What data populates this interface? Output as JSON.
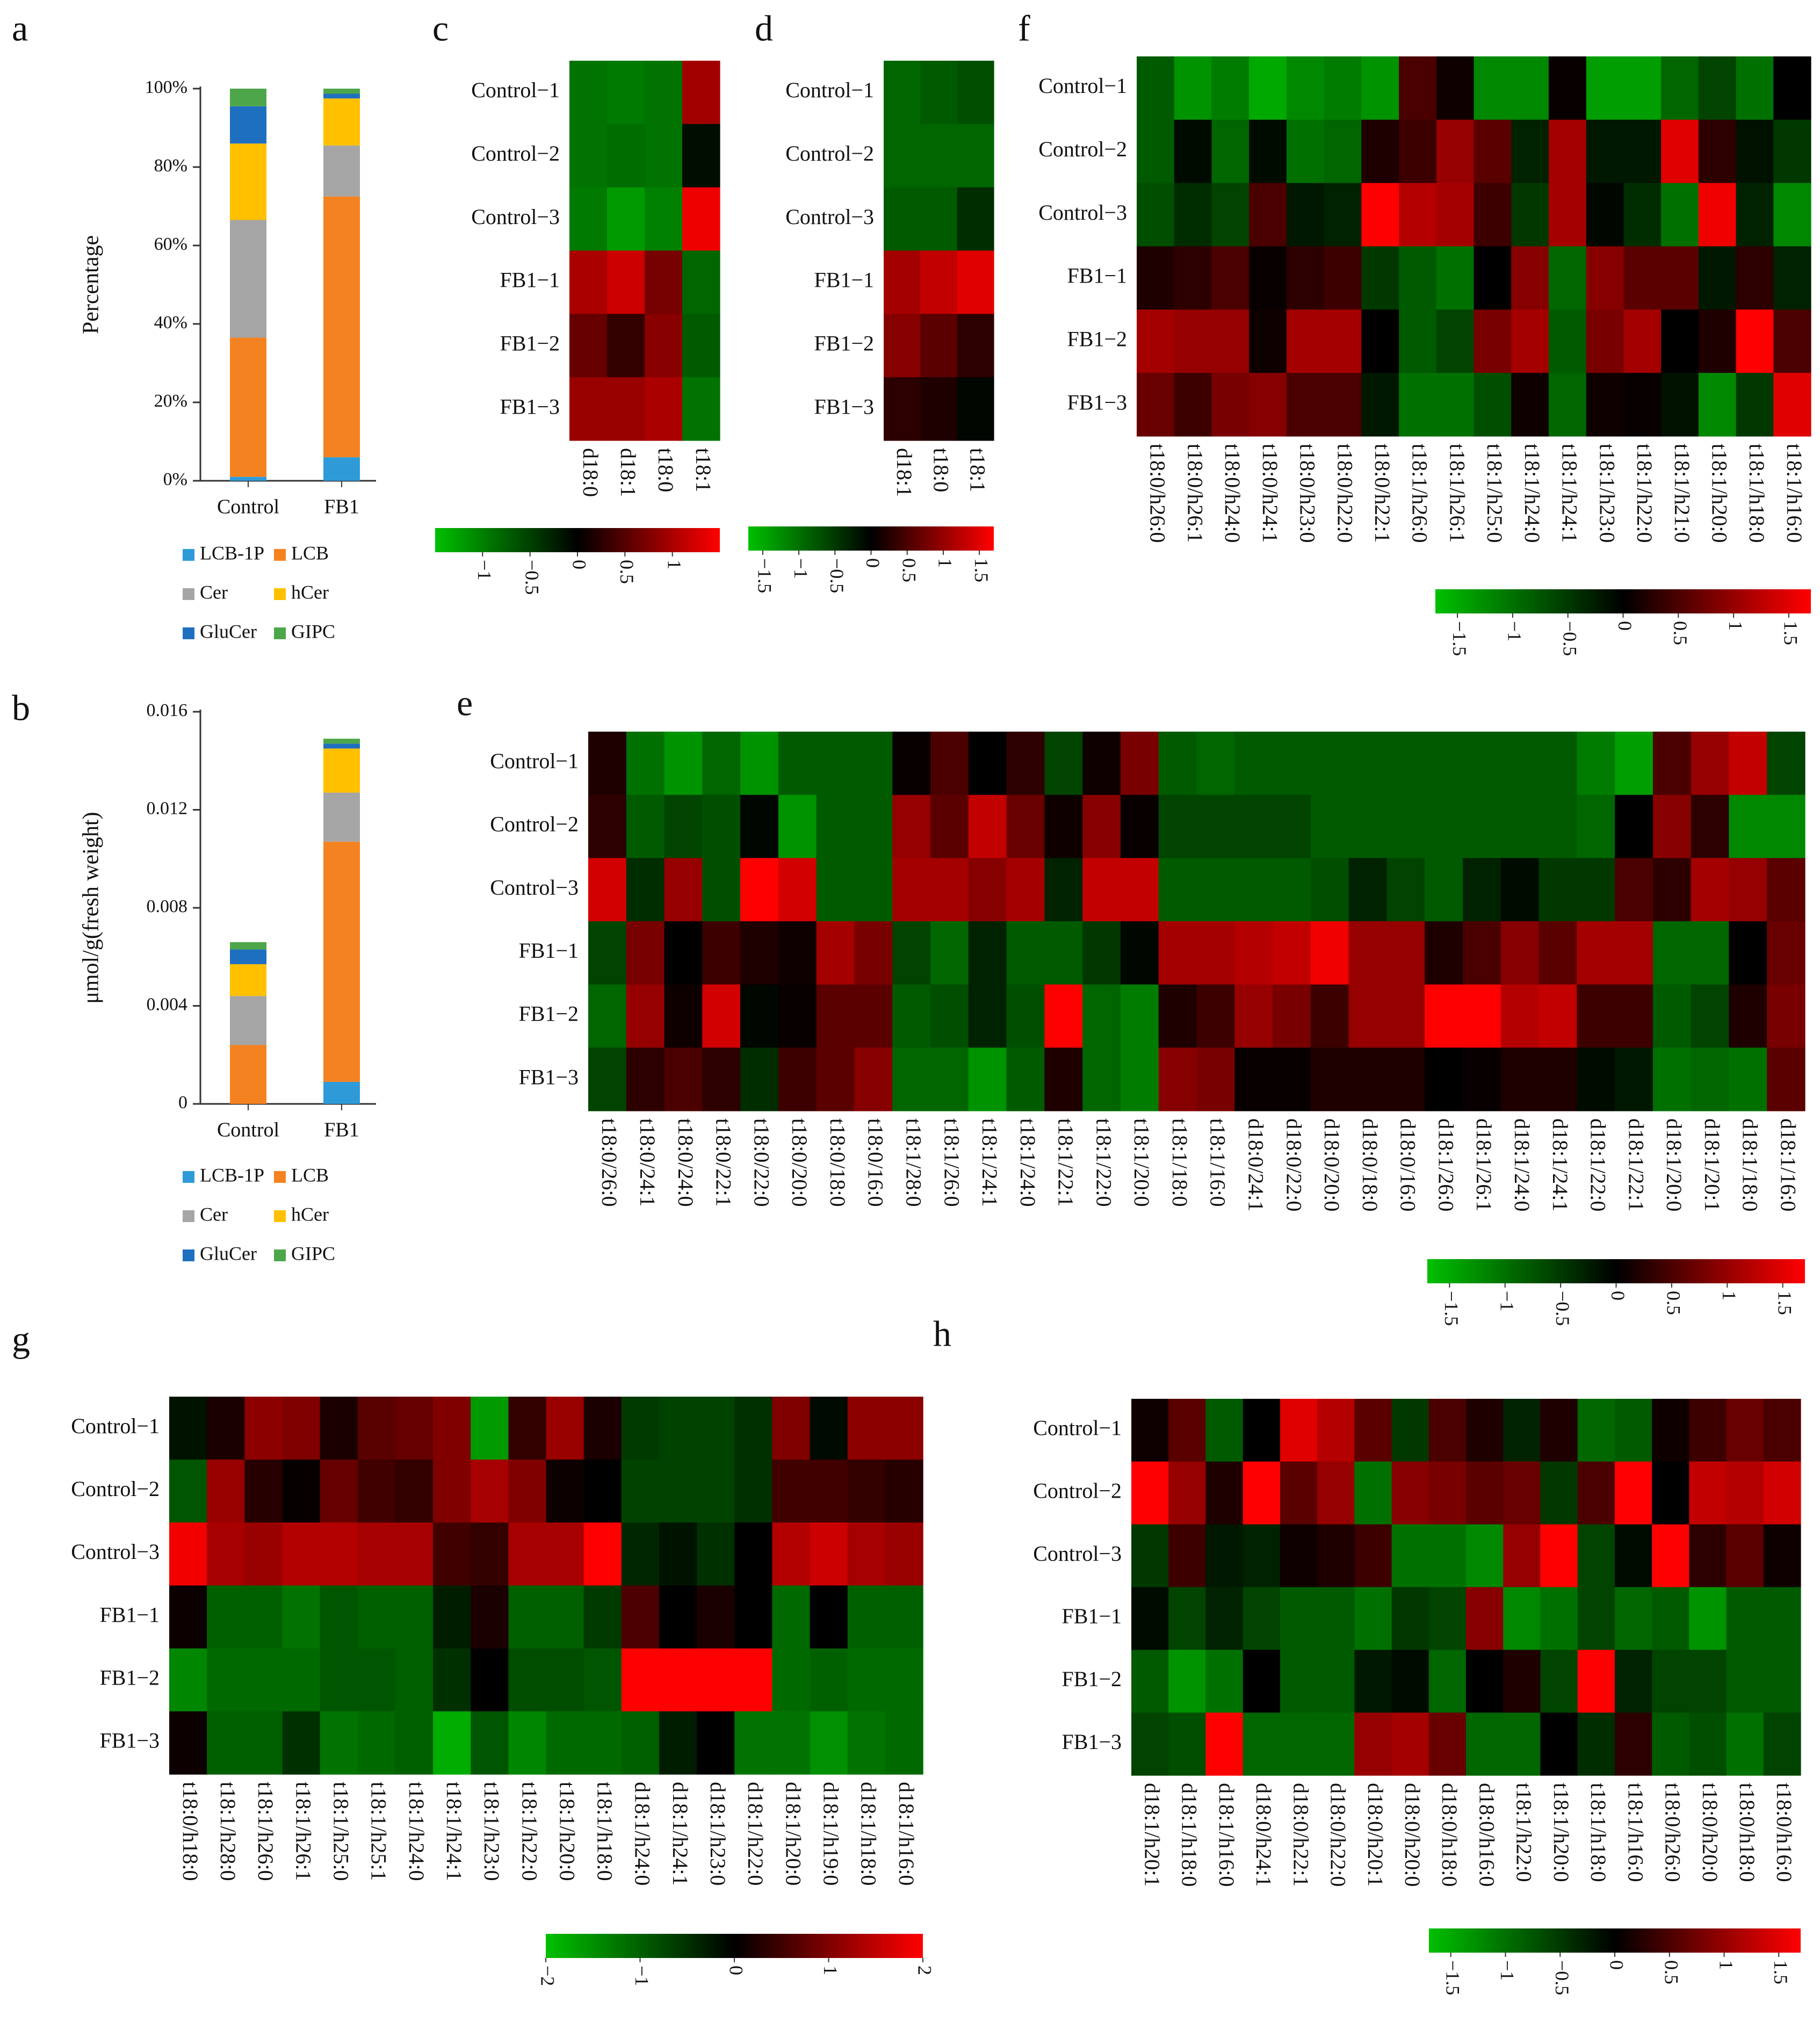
{
  "figure": "Sphingolipid composition and species heatmaps, Control vs FB1",
  "colors": {
    "LCB-1P": "#2e9bd8",
    "LCB": "#f58220",
    "Cer": "#a5a5a5",
    "hCer": "#ffc000",
    "GluCer": "#1f6fc1",
    "GIPC": "#4ea64a",
    "heat_low": "#00c000",
    "heat_mid": "#000000",
    "heat_high": "#ff0000"
  },
  "chart_data": [
    {
      "id": "a",
      "panel_label": "a",
      "type": "bar",
      "stacked": true,
      "categories": [
        "Control",
        "FB1"
      ],
      "series": [
        {
          "name": "LCB-1P",
          "values": [
            0.01,
            0.06
          ]
        },
        {
          "name": "LCB",
          "values": [
            0.355,
            0.665
          ]
        },
        {
          "name": "Cer",
          "values": [
            0.3,
            0.13
          ]
        },
        {
          "name": "hCer",
          "values": [
            0.195,
            0.12
          ]
        },
        {
          "name": "GluCer",
          "values": [
            0.095,
            0.012
          ]
        },
        {
          "name": "GIPC",
          "values": [
            0.045,
            0.013
          ]
        }
      ],
      "title": "",
      "xlabel": "",
      "ylabel": "Percentage",
      "ylim": [
        0,
        1
      ],
      "yticks": [
        0,
        0.2,
        0.4,
        0.6,
        0.8,
        1.0
      ],
      "ytick_labels": [
        "0%",
        "20%",
        "40%",
        "60%",
        "80%",
        "100%"
      ],
      "legend": [
        "LCB-1P",
        "LCB",
        "Cer",
        "hCer",
        "GluCer",
        "GIPC"
      ],
      "legend_position": "bottom"
    },
    {
      "id": "b",
      "panel_label": "b",
      "type": "bar",
      "stacked": true,
      "categories": [
        "Control",
        "FB1"
      ],
      "series": [
        {
          "name": "LCB-1P",
          "values": [
            0.0,
            0.0009
          ]
        },
        {
          "name": "LCB",
          "values": [
            0.0024,
            0.0098
          ]
        },
        {
          "name": "Cer",
          "values": [
            0.002,
            0.002
          ]
        },
        {
          "name": "hCer",
          "values": [
            0.0013,
            0.0018
          ]
        },
        {
          "name": "GluCer",
          "values": [
            0.0006,
            0.0002
          ]
        },
        {
          "name": "GIPC",
          "values": [
            0.0003,
            0.0002
          ]
        }
      ],
      "title": "",
      "xlabel": "",
      "ylabel": "μmol/g(fresh weight)",
      "ylim": [
        0,
        0.016
      ],
      "yticks": [
        0,
        0.004,
        0.008,
        0.012,
        0.016
      ],
      "ytick_labels": [
        "0",
        "0.004",
        "0.008",
        "0.012",
        "0.016"
      ],
      "legend": [
        "LCB-1P",
        "LCB",
        "Cer",
        "hCer",
        "GluCer",
        "GIPC"
      ],
      "legend_position": "bottom"
    },
    {
      "id": "c",
      "panel_label": "c",
      "type": "heatmap",
      "rows": [
        "Control−1",
        "Control−2",
        "Control−3",
        "FB1−1",
        "FB1−2",
        "FB1−3"
      ],
      "columns": [
        "d18:0",
        "d18:1",
        "t18:0",
        "t18:1"
      ],
      "values": [
        [
          -0.9,
          -0.95,
          -0.9,
          0.95
        ],
        [
          -0.9,
          -0.85,
          -0.9,
          -0.1
        ],
        [
          -0.95,
          -1.2,
          -1.0,
          1.4
        ],
        [
          1.0,
          1.2,
          0.7,
          -0.8
        ],
        [
          0.6,
          0.3,
          0.8,
          -0.7
        ],
        [
          0.9,
          0.9,
          1.0,
          -0.9
        ]
      ],
      "scale_range": [
        -1.5,
        1.5
      ],
      "scale_ticks": [
        "−1",
        "−0.5",
        "0",
        "0.5",
        "1"
      ],
      "scale_tick_values": [
        -1,
        -0.5,
        0,
        0.5,
        1
      ]
    },
    {
      "id": "d",
      "panel_label": "d",
      "type": "heatmap",
      "rows": [
        "Control−1",
        "Control−2",
        "Control−3",
        "FB1−1",
        "FB1−2",
        "FB1−3"
      ],
      "columns": [
        "d18:1",
        "t18:0",
        "t18:1"
      ],
      "values": [
        [
          -0.9,
          -0.8,
          -0.7
        ],
        [
          -0.9,
          -0.9,
          -0.9
        ],
        [
          -0.8,
          -0.8,
          -0.4
        ],
        [
          1.1,
          1.3,
          1.5
        ],
        [
          0.9,
          0.6,
          0.3
        ],
        [
          0.3,
          0.2,
          -0.05
        ]
      ],
      "scale_range": [
        -1.7,
        1.7
      ],
      "scale_ticks": [
        "−1.5",
        "−1",
        "−0.5",
        "0",
        "0.5",
        "1",
        "1.5"
      ],
      "scale_tick_values": [
        -1.5,
        -1,
        -0.5,
        0,
        0.5,
        1,
        1.5
      ]
    },
    {
      "id": "e",
      "panel_label": "e",
      "type": "heatmap",
      "rows": [
        "Control−1",
        "Control−2",
        "Control−3",
        "FB1−1",
        "FB1−2",
        "FB1−3"
      ],
      "columns": [
        "t18:0/26:0",
        "t18:0/24:1",
        "t18:0/24:0",
        "t18:0/22:1",
        "t18:0/22:0",
        "t18:0/20:0",
        "t18:0/18:0",
        "t18:0/16:0",
        "t18:1/28:0",
        "t18:1/26:0",
        "t18:1/24:1",
        "t18:1/24:0",
        "t18:1/22:1",
        "t18:1/22:0",
        "t18:1/20:0",
        "t18:1/18:0",
        "t18:1/16:0",
        "d18:0/24:1",
        "d18:0/22:0",
        "d18:0/20:0",
        "d18:0/18:0",
        "d18:0/16:0",
        "d18:1/26:0",
        "d18:1/26:1",
        "d18:1/24:0",
        "d18:1/24:1",
        "d18:1/22:0",
        "d18:1/22:1",
        "d18:1/20:0",
        "d18:1/20:1",
        "d18:1/18:0",
        "d18:1/16:0"
      ],
      "values": [
        [
          0.2,
          -1.0,
          -1.3,
          -0.9,
          -1.3,
          -0.8,
          -0.8,
          -0.8,
          0.05,
          0.5,
          0.0,
          0.3,
          -0.6,
          0.1,
          0.8,
          -0.8,
          -0.9,
          -0.8,
          -0.8,
          -0.8,
          -0.8,
          -0.8,
          -0.8,
          -0.8,
          -0.8,
          -0.8,
          -1.1,
          -1.4,
          0.5,
          1.0,
          1.3,
          -0.6
        ],
        [
          0.3,
          -0.8,
          -0.6,
          -0.7,
          -0.05,
          -1.3,
          -0.8,
          -0.8,
          1.0,
          0.6,
          1.3,
          0.7,
          0.1,
          0.9,
          0.05,
          -0.6,
          -0.6,
          -0.6,
          -0.6,
          -0.8,
          -0.8,
          -0.8,
          -0.8,
          -0.8,
          -0.8,
          -0.8,
          -0.9,
          0.0,
          0.9,
          0.3,
          -1.2,
          -1.2
        ],
        [
          1.4,
          -0.4,
          1.0,
          -0.7,
          1.7,
          1.4,
          -0.8,
          -0.8,
          1.1,
          1.1,
          0.9,
          1.1,
          -0.3,
          1.3,
          1.3,
          -0.8,
          -0.8,
          -0.8,
          -0.8,
          -0.7,
          -0.3,
          -0.6,
          -0.8,
          -0.3,
          -0.1,
          -0.5,
          -0.5,
          0.5,
          0.3,
          1.1,
          1.0,
          0.6
        ],
        [
          -0.6,
          0.8,
          0.0,
          0.4,
          0.2,
          0.1,
          1.1,
          0.8,
          -0.6,
          -0.9,
          -0.3,
          -0.8,
          -0.8,
          -0.5,
          -0.05,
          1.1,
          1.1,
          1.2,
          1.3,
          1.6,
          1.0,
          1.0,
          0.2,
          0.5,
          0.9,
          0.6,
          1.1,
          1.1,
          -0.9,
          -0.9,
          0.0,
          0.7
        ],
        [
          -0.9,
          1.0,
          0.1,
          1.4,
          -0.05,
          0.05,
          0.6,
          0.6,
          -0.8,
          -0.7,
          -0.3,
          -0.7,
          1.7,
          -0.9,
          -1.1,
          0.2,
          0.4,
          1.0,
          0.8,
          0.4,
          1.0,
          1.0,
          1.7,
          1.7,
          1.2,
          1.3,
          0.4,
          0.4,
          -0.8,
          -0.6,
          0.2,
          0.8
        ],
        [
          -0.6,
          0.3,
          0.5,
          0.3,
          -0.4,
          0.4,
          0.6,
          0.9,
          -0.9,
          -0.9,
          -1.3,
          -0.8,
          0.2,
          -0.9,
          -1.1,
          0.9,
          0.8,
          0.05,
          0.05,
          0.2,
          0.2,
          0.2,
          0.0,
          0.05,
          0.2,
          0.2,
          -0.1,
          -0.2,
          -1.0,
          -0.9,
          -1.0,
          0.6
        ]
      ],
      "scale_range": [
        -1.7,
        1.7
      ],
      "scale_ticks": [
        "−1.5",
        "−1",
        "−0.5",
        "0",
        "0.5",
        "1",
        "1.5"
      ],
      "scale_tick_values": [
        -1.5,
        -1,
        -0.5,
        0,
        0.5,
        1,
        1.5
      ]
    },
    {
      "id": "f",
      "panel_label": "f",
      "type": "heatmap",
      "rows": [
        "Control−1",
        "Control−2",
        "Control−3",
        "FB1−1",
        "FB1−2",
        "FB1−3"
      ],
      "columns": [
        "t18:0/h26:0",
        "t18:0/h26:1",
        "t18:0/h24:0",
        "t18:0/h24:1",
        "t18:0/h23:0",
        "t18:0/h22:0",
        "t18:0/h22:1",
        "t18:1/h26:0",
        "t18:1/h26:1",
        "t18:1/h25:0",
        "t18:1/h24:0",
        "t18:1/h24:1",
        "t18:1/h23:0",
        "t18:1/h22:0",
        "t18:1/h21:0",
        "t18:1/h20:0",
        "t18:1/h18:0",
        "t18:1/h16:0"
      ],
      "values": [
        [
          -0.8,
          -1.3,
          -1.1,
          -1.5,
          -1.2,
          -1.1,
          -1.3,
          0.5,
          0.1,
          -1.2,
          -1.2,
          0.05,
          -1.4,
          -1.4,
          -0.9,
          -0.6,
          -1.0,
          0.0
        ],
        [
          -0.8,
          -0.1,
          -0.9,
          -0.1,
          -1.0,
          -0.9,
          0.2,
          0.4,
          1.0,
          0.6,
          -0.3,
          1.1,
          -0.2,
          -0.2,
          1.5,
          0.3,
          -0.15,
          -0.5
        ],
        [
          -0.7,
          -0.4,
          -0.6,
          0.5,
          -0.2,
          -0.3,
          1.7,
          1.2,
          1.1,
          0.4,
          -0.5,
          1.1,
          -0.05,
          -0.4,
          -1.0,
          1.6,
          -0.3,
          -1.2
        ],
        [
          0.2,
          0.3,
          0.5,
          0.05,
          0.3,
          0.4,
          -0.5,
          -0.8,
          -1.0,
          0.0,
          0.9,
          -0.9,
          0.9,
          0.6,
          0.6,
          -0.2,
          0.3,
          -0.3
        ],
        [
          1.1,
          1.0,
          1.0,
          0.1,
          1.1,
          1.1,
          0.0,
          -0.8,
          -0.6,
          0.8,
          1.1,
          -0.8,
          0.8,
          1.1,
          0.0,
          0.2,
          1.7,
          0.5
        ],
        [
          0.7,
          0.4,
          0.8,
          0.9,
          0.5,
          0.5,
          -0.2,
          -1.0,
          -1.0,
          -0.7,
          0.1,
          -0.9,
          0.1,
          0.05,
          -0.15,
          -1.2,
          -0.5,
          1.5
        ]
      ],
      "scale_range": [
        -1.7,
        1.7
      ],
      "scale_ticks": [
        "−1.5",
        "−1",
        "−0.5",
        "0",
        "0.5",
        "1",
        "1.5"
      ],
      "scale_tick_values": [
        -1.5,
        -1,
        -0.5,
        0,
        0.5,
        1,
        1.5
      ]
    },
    {
      "id": "g",
      "panel_label": "g",
      "type": "heatmap",
      "rows": [
        "Control−1",
        "Control−2",
        "Control−3",
        "FB1−1",
        "FB1−2",
        "FB1−3"
      ],
      "columns": [
        "t18:0/h18:0",
        "t18:1/h28:0",
        "t18:1/h26:0",
        "t18:1/h26:1",
        "t18:1/h25:0",
        "t18:1/h25:1",
        "t18:1/h24:0",
        "t18:1/h24:1",
        "t18:1/h23:0",
        "t18:1/h22:0",
        "t18:1/h20:0",
        "t18:1/h18:0",
        "d18:1/h24:0",
        "d18:1/h24:1",
        "d18:1/h23:0",
        "d18:1/h22:0",
        "d18:1/h20:0",
        "d18:1/h19:0",
        "d18:1/h18:0",
        "d18:1/h16:0"
      ],
      "values": [
        [
          -0.2,
          0.2,
          1.1,
          1.0,
          0.2,
          0.7,
          0.8,
          1.0,
          -1.6,
          0.4,
          1.2,
          0.2,
          -0.6,
          -0.7,
          -0.7,
          -0.5,
          1.0,
          -0.1,
          1.1,
          1.1
        ],
        [
          -0.9,
          1.2,
          0.3,
          0.05,
          0.8,
          0.5,
          0.4,
          1.0,
          1.3,
          1.0,
          0.1,
          0.0,
          -0.7,
          -0.7,
          -0.7,
          -0.5,
          0.5,
          0.5,
          0.4,
          0.3
        ],
        [
          1.9,
          1.3,
          1.2,
          1.4,
          1.4,
          1.3,
          1.3,
          0.5,
          0.4,
          1.3,
          1.3,
          2.0,
          -0.4,
          -0.2,
          -0.5,
          0.0,
          1.4,
          1.6,
          1.3,
          1.2
        ],
        [
          0.1,
          -1.0,
          -1.0,
          -1.2,
          -0.9,
          -1.0,
          -1.0,
          -0.3,
          0.2,
          -1.0,
          -1.0,
          -0.6,
          0.6,
          0.0,
          0.2,
          0.0,
          -1.1,
          0.0,
          -1.0,
          -1.0
        ],
        [
          -1.4,
          -1.1,
          -1.1,
          -1.1,
          -0.9,
          -0.9,
          -1.0,
          -0.5,
          0.0,
          -0.8,
          -0.8,
          -0.9,
          2.0,
          2.0,
          2.0,
          2.0,
          -1.1,
          -1.0,
          -1.1,
          -1.1
        ],
        [
          0.1,
          -1.0,
          -1.0,
          -0.5,
          -1.2,
          -1.1,
          -1.0,
          -1.8,
          -0.9,
          -1.4,
          -1.1,
          -1.1,
          -1.0,
          -0.3,
          0.0,
          -1.2,
          -1.2,
          -1.5,
          -1.2,
          -1.1
        ]
      ],
      "scale_range": [
        -2,
        2
      ],
      "scale_ticks": [
        "−2",
        "−1",
        "0",
        "1",
        "2"
      ],
      "scale_tick_values": [
        -2,
        -1,
        0,
        1,
        2
      ]
    },
    {
      "id": "h",
      "panel_label": "h",
      "type": "heatmap",
      "rows": [
        "Control−1",
        "Control−2",
        "Control−3",
        "FB1−1",
        "FB1−2",
        "FB1−3"
      ],
      "columns": [
        "d18:1/h20:1",
        "d18:1/h18:0",
        "d18:1/h16:0",
        "d18:0/h24:1",
        "d18:0/h22:1",
        "d18:0/h22:0",
        "d18:0/h20:1",
        "d18:0/h20:0",
        "d18:0/h18:0",
        "d18:0/h16:0",
        "t18:1/h22:0",
        "t18:1/h20:0",
        "t18:1/h18:0",
        "t18:1/h16:0",
        "t18:0/h26:0",
        "t18:0/h20:0",
        "t18:0/h18:0",
        "t18:0/h16:0"
      ],
      "values": [
        [
          0.1,
          0.6,
          -0.8,
          0.0,
          1.5,
          1.2,
          0.6,
          -0.5,
          0.5,
          0.2,
          -0.3,
          0.2,
          -0.9,
          -0.8,
          0.1,
          0.4,
          0.7,
          0.5
        ],
        [
          1.7,
          1.0,
          0.2,
          1.7,
          0.6,
          1.0,
          -1.0,
          0.9,
          0.8,
          0.6,
          0.7,
          -0.5,
          0.5,
          1.7,
          0.0,
          1.3,
          1.2,
          1.4
        ],
        [
          -0.5,
          0.4,
          -0.2,
          -0.3,
          0.1,
          0.2,
          0.4,
          -1.0,
          -1.0,
          -1.2,
          1.0,
          1.7,
          -0.6,
          -0.1,
          1.7,
          0.3,
          0.6,
          0.1
        ],
        [
          -0.1,
          -0.6,
          -0.3,
          -0.6,
          -0.8,
          -0.8,
          -1.0,
          -0.5,
          -0.6,
          0.9,
          -1.2,
          -1.0,
          -0.6,
          -0.9,
          -0.8,
          -1.3,
          -0.8,
          -0.8
        ],
        [
          -0.8,
          -1.3,
          -1.0,
          0.0,
          -0.8,
          -0.8,
          -0.2,
          -0.1,
          -0.9,
          0.0,
          0.2,
          -0.6,
          1.7,
          -0.3,
          -0.6,
          -0.6,
          -0.8,
          -0.8
        ],
        [
          -0.6,
          -0.7,
          1.7,
          -0.9,
          -0.9,
          -0.9,
          1.0,
          1.1,
          0.7,
          -0.9,
          -0.9,
          0.0,
          -0.4,
          0.3,
          -0.8,
          -0.7,
          -1.0,
          -0.6
        ]
      ],
      "scale_range": [
        -1.7,
        1.7
      ],
      "scale_ticks": [
        "−1.5",
        "−1",
        "−0.5",
        "0",
        "0.5",
        "1",
        "1.5"
      ],
      "scale_tick_values": [
        -1.5,
        -1,
        -0.5,
        0,
        0.5,
        1,
        1.5
      ]
    }
  ]
}
